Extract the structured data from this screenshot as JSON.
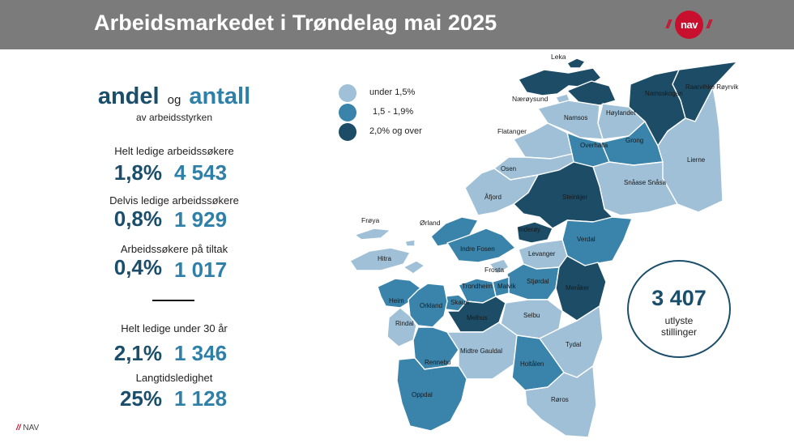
{
  "header": {
    "title": "Arbeidsmarkedet i Trøndelag mai 2025"
  },
  "logo": {
    "slashes_left": "//",
    "text": "nav",
    "slashes_right": "//",
    "color": "#c8102e"
  },
  "headline": {
    "word1": "andel",
    "joiner": "og",
    "word2": "antall",
    "subtitle": "av arbeidsstyrken"
  },
  "stats": [
    {
      "label": "Helt ledige arbeidssøkere",
      "percent": "1,8%",
      "count": "4 543"
    },
    {
      "label": "Delvis ledige arbeidssøkere",
      "percent": "0,8%",
      "count": "1 929"
    },
    {
      "label": "Arbeidssøkere på tiltak",
      "percent": "0,4%",
      "count": "1 017"
    },
    {
      "label": "Helt ledige under 30 år",
      "percent": "2,1%",
      "count": "1 346"
    },
    {
      "label": "Langtidsledighet",
      "percent": "25%",
      "count": "1 128"
    }
  ],
  "legend": [
    {
      "label": "under 1,5%",
      "color": "#9fc0d6"
    },
    {
      "label": "1,5 - 1,9%",
      "color": "#3a84ac"
    },
    {
      "label": "2,0% og over",
      "color": "#1c4c66"
    }
  ],
  "vacancies": {
    "count": "3 407",
    "label": "utlyste stillinger"
  },
  "municipalities": {
    "leka": "Leka",
    "naeroysund": "Nærøysund",
    "raarvihke": "Raarvihke Røyrvik",
    "namsskogan": "Namsskogan",
    "namsos": "Namsos",
    "hoylandet": "Høylandet",
    "flatanger": "Flatanger",
    "overhalla": "Overhalla",
    "grong": "Grong",
    "lierne": "Lierne",
    "osen": "Osen",
    "snaase": "Snåase Snåsa",
    "afjord": "Åfjord",
    "steinkjer": "Steinkjer",
    "froya": "Frøya",
    "orland": "Ørland",
    "inderoy": "Inderøy",
    "indre_fosen": "Indre Fosen",
    "verdal": "Verdal",
    "hitra": "Hitra",
    "levanger": "Levanger",
    "frosta": "Frosta",
    "stjordal": "Stjørdal",
    "trondheim": "Trondheim",
    "malvik": "Malvik",
    "meraker": "Meråker",
    "heim": "Heim",
    "orkland": "Orkland",
    "skaun": "Skaun",
    "melhus": "Melhus",
    "selbu": "Selbu",
    "rindal": "Rindal",
    "tydal": "Tydal",
    "rennebu": "Rennebu",
    "midtre_gauldal": "Midtre Gauldal",
    "holtalen": "Holtålen",
    "oppdal": "Oppdal",
    "roros": "Røros"
  },
  "footer": {
    "slashes": "//",
    "text": "NAV"
  }
}
